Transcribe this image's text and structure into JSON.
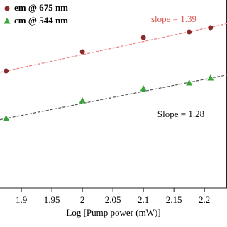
{
  "chart_data": {
    "type": "scatter",
    "x_label": "Log [Pump power (mW)]",
    "x": [
      1.875,
      2.0,
      2.1,
      2.175,
      2.21
    ],
    "series": [
      {
        "name": "em @ 675 nm",
        "color": "#8b2a2a",
        "marker": "circle",
        "values": [
          1.245,
          1.449,
          1.6,
          1.66,
          1.706
        ]
      },
      {
        "name": "cm @ 544 nm",
        "color": "#3aa33a",
        "marker": "triangle",
        "values": [
          0.74,
          0.928,
          1.057,
          1.117,
          1.17
        ]
      }
    ],
    "fits": [
      {
        "color": "#e88080",
        "x": [
          1.865,
          2.237
        ],
        "values": [
          1.231,
          1.748
        ],
        "label": "slope = 1.39",
        "label_color": "#d9534f"
      },
      {
        "color": "#555555",
        "x": [
          1.865,
          2.237
        ],
        "values": [
          0.727,
          1.203
        ],
        "label": "Slope = 1.28",
        "label_color": "#111111"
      }
    ],
    "xlim": [
      1.865,
      2.237
    ],
    "ylim": [
      0,
      2
    ],
    "xticks": [
      {
        "value": 1.9,
        "label": "1.9"
      },
      1.95,
      {
        "value": 2.0,
        "label": "2"
      },
      2.05,
      {
        "value": 2.1,
        "label": "2.1"
      },
      2.15,
      {
        "value": 2.2,
        "label": "2.2"
      }
    ]
  }
}
